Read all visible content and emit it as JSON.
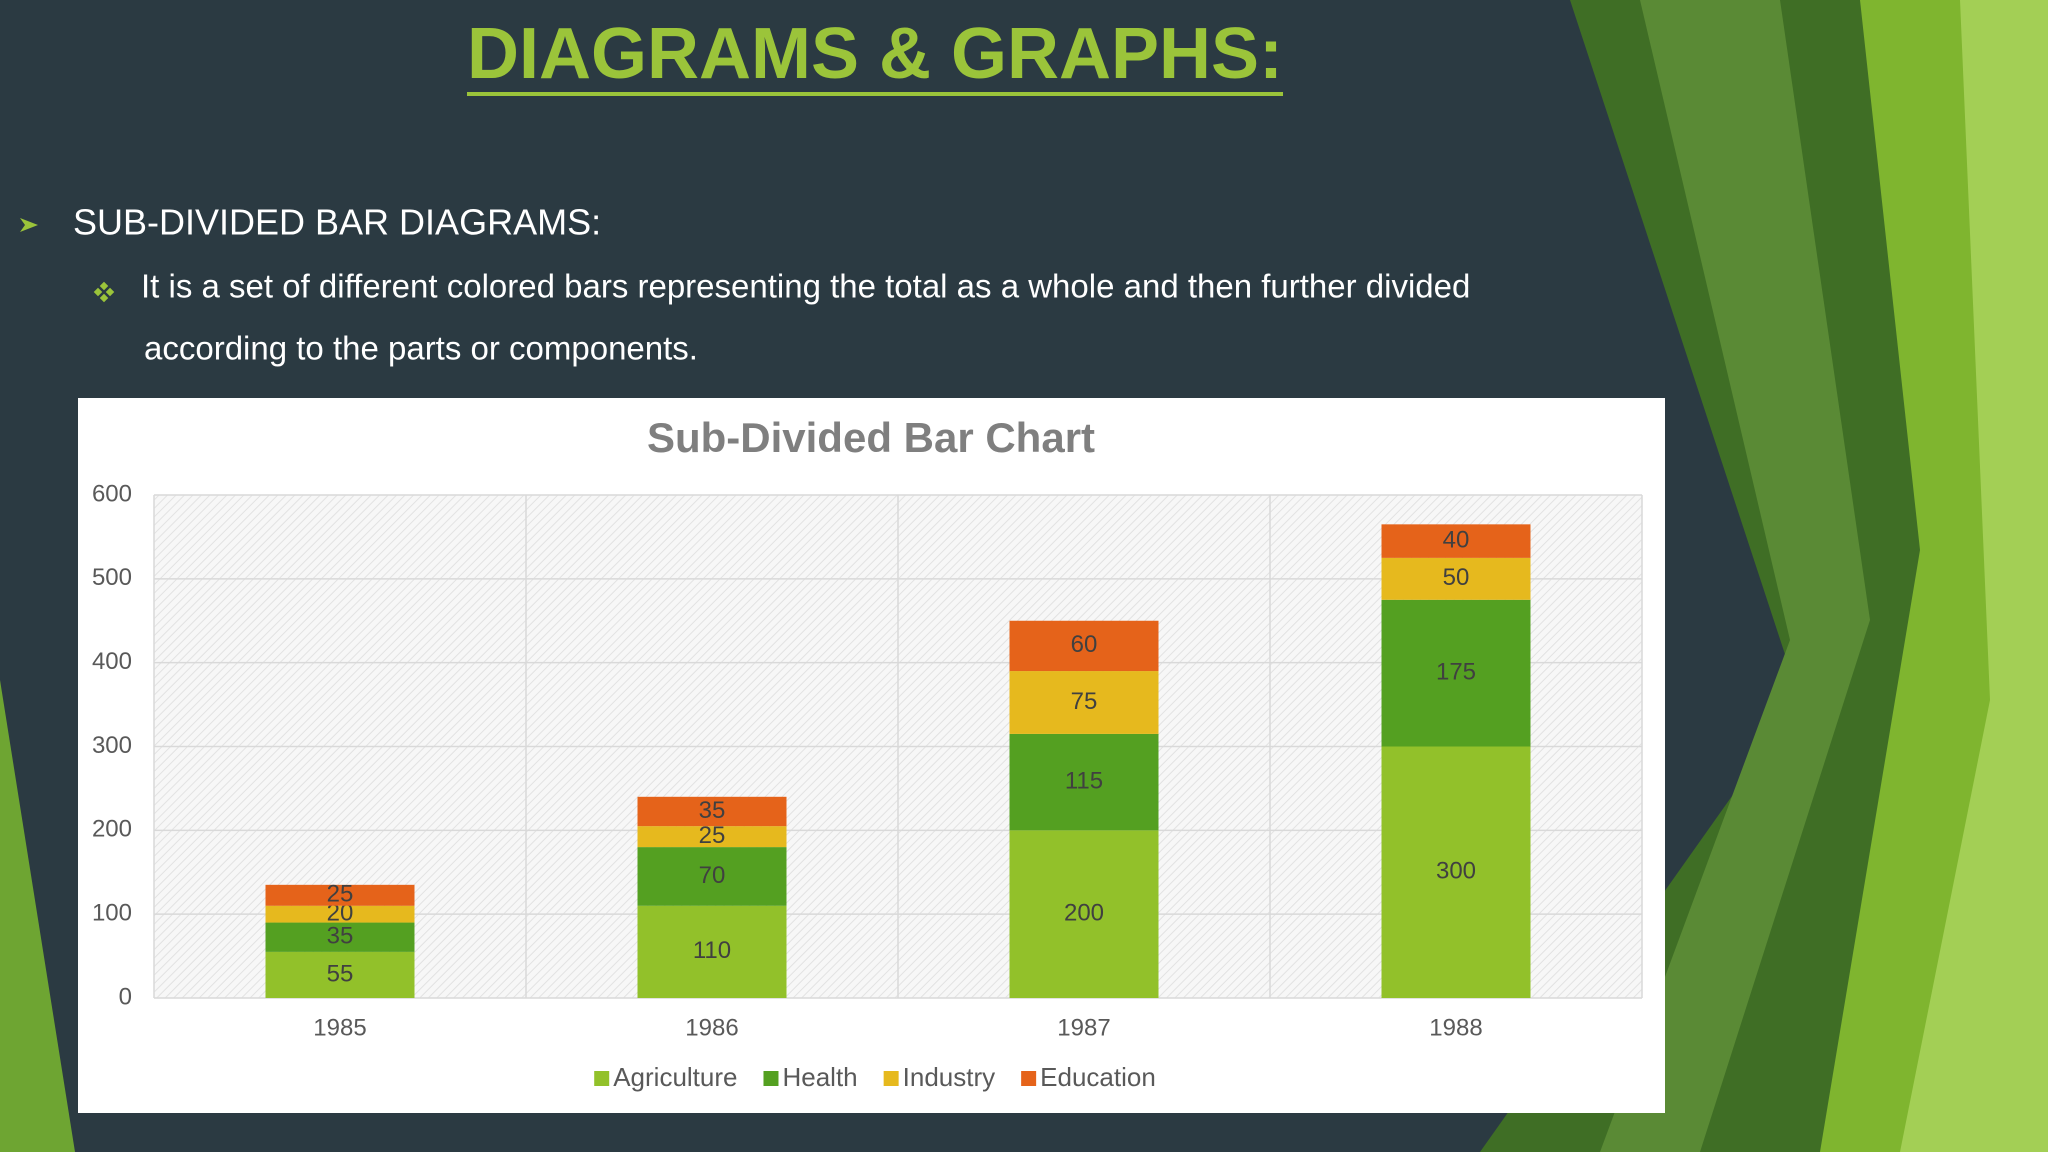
{
  "header": {
    "title": "DIAGRAMS & GRAPHS:"
  },
  "bullet": {
    "text": "SUB-DIVIDED BAR DIAGRAMS:"
  },
  "sub_bullet": {
    "lines": [
      "It is a  set of different colored bars representing the total as a whole and then further divided",
      "according to the parts or components."
    ]
  },
  "chart_data": {
    "type": "stacked_bar",
    "title": "Sub-Divided Bar Chart",
    "categories": [
      "1985",
      "1986",
      "1987",
      "1988"
    ],
    "series": [
      {
        "name": "Agriculture",
        "color": "#92c12a",
        "values": [
          55,
          110,
          200,
          300
        ]
      },
      {
        "name": "Health",
        "color": "#54a021",
        "values": [
          35,
          70,
          115,
          175
        ]
      },
      {
        "name": "Industry",
        "color": "#e6b91e",
        "values": [
          20,
          25,
          75,
          50
        ]
      },
      {
        "name": "Education",
        "color": "#e5631a",
        "values": [
          25,
          35,
          60,
          40
        ]
      }
    ],
    "ylim": [
      0,
      600
    ],
    "yticks": [
      0,
      100,
      200,
      300,
      400,
      500,
      600
    ],
    "grid": true,
    "legend": "bottom"
  }
}
